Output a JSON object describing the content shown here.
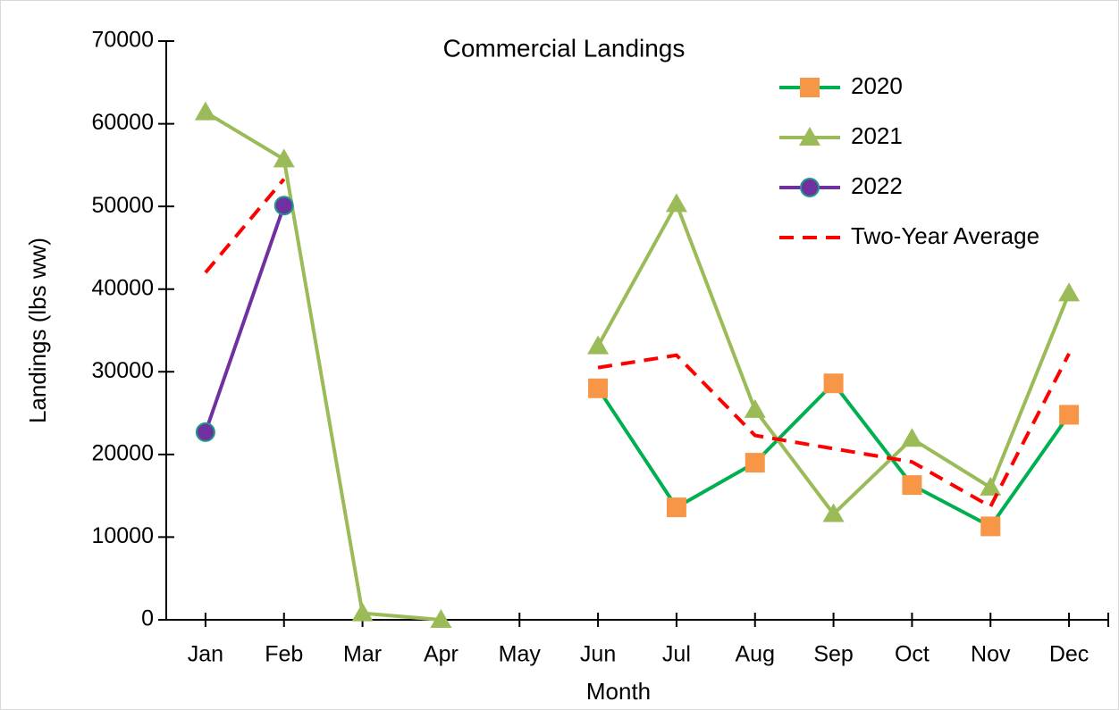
{
  "chart_data": {
    "type": "line",
    "title": "Commercial Landings",
    "xlabel": "Month",
    "ylabel": "Landings (lbs ww)",
    "categories": [
      "Jan",
      "Feb",
      "Mar",
      "Apr",
      "May",
      "Jun",
      "Jul",
      "Aug",
      "Sep",
      "Oct",
      "Nov",
      "Dec"
    ],
    "ylim": [
      0,
      70000
    ],
    "yticks": [
      0,
      10000,
      20000,
      30000,
      40000,
      50000,
      60000,
      70000
    ],
    "grid": false,
    "legend": "upper right",
    "series": [
      {
        "name": "2020",
        "color": "#00b050",
        "marker": "square",
        "marker_color": "#f79646",
        "dashed": false,
        "values": [
          null,
          null,
          null,
          null,
          null,
          28000,
          13600,
          19000,
          28600,
          16300,
          11300,
          24800
        ]
      },
      {
        "name": "2021",
        "color": "#9bbb59",
        "marker": "triangle",
        "marker_color": "#9bbb59",
        "dashed": false,
        "values": [
          61400,
          55700,
          800,
          0,
          null,
          33100,
          50300,
          25400,
          12800,
          21900,
          16000,
          39500
        ]
      },
      {
        "name": "2022",
        "color": "#7030a0",
        "marker": "circle",
        "marker_color": "#7030a0",
        "dashed": false,
        "values": [
          22700,
          50100,
          null,
          null,
          null,
          null,
          null,
          null,
          null,
          null,
          null,
          null
        ]
      },
      {
        "name": "Two-Year Average",
        "color": "#ff0000",
        "marker": "none",
        "marker_color": "#ff0000",
        "dashed": true,
        "values": [
          42000,
          53300,
          null,
          null,
          null,
          30500,
          32000,
          22300,
          20700,
          19100,
          13700,
          32200
        ]
      }
    ]
  }
}
